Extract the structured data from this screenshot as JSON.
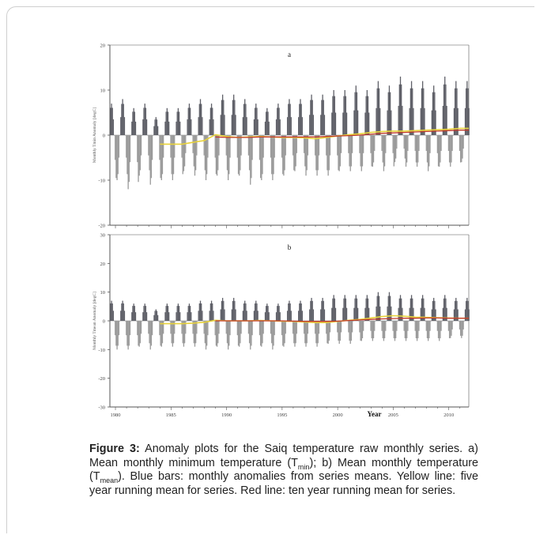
{
  "chart_data": [
    {
      "panel": "a",
      "type": "bar",
      "ylabel": "Monthly Tmin Anomaly [degC]",
      "ylim": [
        -20,
        20
      ],
      "yticks": [
        -20,
        -10,
        0,
        10,
        20
      ],
      "xlim": [
        1979.5,
        2011.8
      ],
      "series": [
        {
          "name": "Blue bars",
          "x": [
            1979.6,
            1980.6,
            1981.6,
            1982.6,
            1983.6,
            1984.6,
            1985.6,
            1986.6,
            1987.6,
            1988.6,
            1989.6,
            1990.6,
            1991.6,
            1992.6,
            1993.6,
            1994.6,
            1995.6,
            1996.6,
            1997.6,
            1998.6,
            1999.6,
            2000.6,
            2001.6,
            2002.6,
            2003.6,
            2004.6,
            2005.6,
            2006.6,
            2007.6,
            2008.6,
            2009.6,
            2010.6,
            2011.6
          ],
          "summer_peak": [
            7,
            8,
            6,
            7,
            4,
            6,
            6,
            7,
            8,
            7,
            9,
            9,
            8,
            7,
            6,
            7,
            8,
            8,
            9,
            9,
            10,
            10,
            11,
            10,
            12,
            11,
            13,
            12,
            12,
            11,
            13,
            12,
            12
          ],
          "winter_trough": [
            -11,
            -10,
            -12,
            -9,
            -11,
            -10,
            -10,
            -8,
            -9,
            -10,
            -9,
            -10,
            -9,
            -11,
            -10,
            -10,
            -9,
            -8,
            -9,
            -9,
            -9,
            -8,
            -8,
            -8,
            -7,
            -8,
            -6,
            -7,
            -7,
            -8,
            -7,
            -7,
            -6
          ]
        },
        {
          "name": "Yellow line",
          "x": [
            1984,
            1985,
            1986,
            1987,
            1988,
            1989,
            1990,
            1991,
            1992,
            1993,
            1994,
            1995,
            1996,
            1997,
            1998,
            1999,
            2000,
            2001,
            2002,
            2003,
            2004,
            2005,
            2006,
            2007,
            2008,
            2009,
            2010,
            2011,
            2011.8
          ],
          "values": [
            -2,
            -2,
            -2,
            -1.6,
            -1.2,
            0.1,
            -0.3,
            -0.5,
            -0.4,
            -0.3,
            -0.4,
            -0.5,
            -0.5,
            -0.6,
            -0.8,
            -0.5,
            -0.2,
            0.1,
            0.3,
            0.6,
            0.8,
            0.9,
            0.9,
            1.0,
            1.1,
            1.2,
            1.3,
            1.5,
            1.5
          ]
        },
        {
          "name": "Red line",
          "x": [
            1989,
            1990,
            1991,
            1992,
            1993,
            1994,
            1995,
            1996,
            1997,
            1998,
            1999,
            2000,
            2001,
            2002,
            2003,
            2004,
            2005,
            2006,
            2007,
            2008,
            2009,
            2010,
            2011,
            2011.8
          ],
          "values": [
            -0.4,
            -0.5,
            -0.5,
            -0.5,
            -0.4,
            -0.4,
            -0.4,
            -0.4,
            -0.4,
            -0.4,
            -0.3,
            -0.2,
            -0.1,
            0,
            0.2,
            0.4,
            0.5,
            0.6,
            0.7,
            0.8,
            0.9,
            1.0,
            1.1,
            1.1
          ]
        }
      ]
    },
    {
      "panel": "b",
      "type": "bar",
      "xlabel": "Year",
      "ylabel": "Monthly Tmean Anomaly [degC]",
      "ylim": [
        -30,
        30
      ],
      "yticks": [
        -30,
        -20,
        -10,
        0,
        10,
        20,
        30
      ],
      "xlim": [
        1979.5,
        2011.8
      ],
      "xticks": [
        1980,
        1985,
        1990,
        1995,
        2000,
        2005,
        2010
      ],
      "series": [
        {
          "name": "Blue bars",
          "x": [
            1979.6,
            1980.6,
            1981.6,
            1982.6,
            1983.6,
            1984.6,
            1985.6,
            1986.6,
            1987.6,
            1988.6,
            1989.6,
            1990.6,
            1991.6,
            1992.6,
            1993.6,
            1994.6,
            1995.6,
            1996.6,
            1997.6,
            1998.6,
            1999.6,
            2000.6,
            2001.6,
            2002.6,
            2003.6,
            2004.6,
            2005.6,
            2006.6,
            2007.6,
            2008.6,
            2009.6,
            2010.6,
            2011.6
          ],
          "summer_peak": [
            7,
            7,
            6,
            6,
            4,
            6,
            6,
            6,
            7,
            7,
            8,
            8,
            7,
            7,
            6,
            6,
            7,
            7,
            8,
            8,
            9,
            9,
            9,
            9,
            10,
            10,
            9,
            9,
            9,
            8,
            9,
            8,
            8
          ],
          "winter_trough": [
            -10,
            -10,
            -10,
            -9,
            -10,
            -9,
            -9,
            -9,
            -9,
            -10,
            -9,
            -10,
            -9,
            -10,
            -9,
            -10,
            -9,
            -9,
            -9,
            -9,
            -8,
            -8,
            -8,
            -7,
            -7,
            -7,
            -7,
            -7,
            -7,
            -7,
            -7,
            -6,
            -6
          ]
        },
        {
          "name": "Yellow line",
          "x": [
            1984,
            1985,
            1986,
            1987,
            1988,
            1989,
            1990,
            1991,
            1992,
            1993,
            1994,
            1995,
            1996,
            1997,
            1998,
            1999,
            2000,
            2001,
            2002,
            2003,
            2004,
            2005,
            2006,
            2007,
            2008,
            2009,
            2010,
            2011,
            2011.8
          ],
          "values": [
            -1,
            -1,
            -1,
            -0.8,
            -0.5,
            0.2,
            0,
            0,
            0,
            0.1,
            0,
            -0.1,
            -0.2,
            -0.4,
            -0.6,
            -0.6,
            -0.2,
            0.2,
            0.5,
            1.0,
            1.5,
            1.8,
            1.6,
            1.3,
            1.2,
            1.1,
            1.0,
            0.9,
            0.9
          ]
        },
        {
          "name": "Red line",
          "x": [
            1989,
            1990,
            1991,
            1992,
            1993,
            1994,
            1995,
            1996,
            1997,
            1998,
            1999,
            2000,
            2001,
            2002,
            2003,
            2004,
            2005,
            2006,
            2007,
            2008,
            2009,
            2010,
            2011,
            2011.8
          ],
          "values": [
            0,
            0,
            0,
            0,
            0,
            0,
            0,
            -0.1,
            -0.2,
            -0.2,
            -0.2,
            -0.1,
            0.1,
            0.3,
            0.5,
            0.7,
            0.8,
            0.9,
            0.9,
            1.0,
            1.0,
            0.9,
            0.9,
            0.9
          ]
        }
      ]
    }
  ],
  "colors": {
    "bars_light": "#9a9a9a",
    "bars_dark": "#5f6068",
    "yellow_line": "#e8d23a",
    "red_line": "#c0392b",
    "axis": "#555555"
  },
  "caption": {
    "label": "Figure 3:",
    "t1": "Anomaly plots for the Saiq temperature raw monthly series. a) Mean monthly minimum temperature (T",
    "s1": "min",
    "t2": "); b) Mean monthly temperature (T",
    "s2": "mean",
    "t3": "). Blue bars: monthly anomalies from series means. Yellow line: five year running mean for series. Red line: ten year running mean for series."
  }
}
